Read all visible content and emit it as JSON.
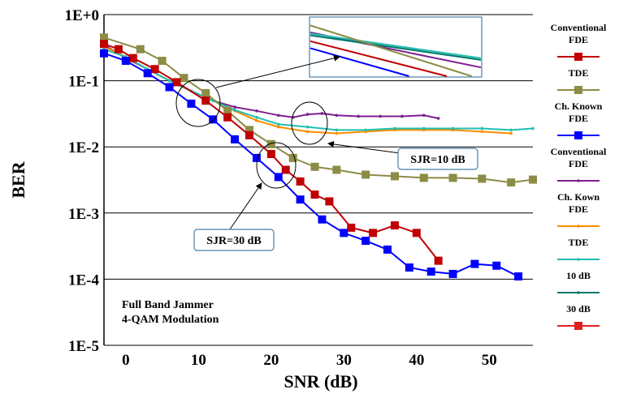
{
  "chart_data": {
    "type": "line",
    "xlabel": "SNR (dB)",
    "ylabel": "BER",
    "xlim": [
      -3,
      56
    ],
    "ylim_log10": [
      -5,
      0
    ],
    "log_y": true,
    "grid": "horizontal",
    "x_ticks": [
      0,
      10,
      20,
      30,
      40,
      50
    ],
    "y_ticks": [
      "1E+0",
      "1E-1",
      "1E-2",
      "1E-3",
      "1E-4",
      "1E-5"
    ],
    "legend_placement": "right, outside",
    "annotations": {
      "jammer_line1": "Full Band Jammer",
      "jammer_line2": "4-QAM Modulation",
      "sjr10": "SJR=10 dB",
      "sjr30": "SJR=30 dB"
    },
    "legend": [
      {
        "lines": [
          "Conventional",
          "FDE"
        ],
        "color": "#c00000",
        "marker": "square"
      },
      {
        "lines": [
          "TDE"
        ],
        "color": "#8c8c46",
        "marker": "square"
      },
      {
        "lines": [
          "Ch. Known",
          "FDE"
        ],
        "color": "#0000ff",
        "marker": "square"
      },
      {
        "lines": [
          "Conventional",
          "FDE"
        ],
        "color": "#7f1f8f",
        "marker": "dot"
      },
      {
        "lines": [
          "Ch. Kown",
          "FDE"
        ],
        "color": "#ff8c00",
        "marker": "dot"
      },
      {
        "lines": [
          "TDE"
        ],
        "color": "#1fbfaf",
        "marker": "dot"
      },
      {
        "lines": [
          "10 dB"
        ],
        "color": "#00766b",
        "marker": "dot"
      },
      {
        "lines": [
          "30 dB"
        ],
        "color": "#e0201f",
        "marker": "square"
      }
    ],
    "series": [
      {
        "color": "#7f1f8f",
        "marker": "dot",
        "x": [
          -3,
          0,
          3,
          6,
          9,
          12,
          15,
          18,
          21,
          23,
          25,
          27,
          29,
          32,
          35,
          38,
          41,
          43
        ],
        "y": [
          0.35,
          0.22,
          0.15,
          0.1,
          0.07,
          0.05,
          0.04,
          0.035,
          0.03,
          0.028,
          0.031,
          0.032,
          0.03,
          0.029,
          0.029,
          0.029,
          0.03,
          0.027
        ]
      },
      {
        "color": "#ff8c00",
        "marker": "dot",
        "x": [
          -3,
          0,
          3,
          6,
          9,
          12,
          15,
          18,
          21,
          25,
          29,
          33,
          37,
          41,
          45,
          49,
          53
        ],
        "y": [
          0.33,
          0.23,
          0.15,
          0.1,
          0.07,
          0.05,
          0.035,
          0.025,
          0.02,
          0.017,
          0.016,
          0.017,
          0.018,
          0.018,
          0.018,
          0.017,
          0.016
        ]
      },
      {
        "color": "#1fbfaf",
        "marker": "dot",
        "x": [
          -3,
          0,
          3,
          6,
          9,
          12,
          15,
          18,
          21,
          25,
          29,
          33,
          37,
          41,
          45,
          49,
          53,
          56
        ],
        "y": [
          0.3,
          0.23,
          0.15,
          0.1,
          0.07,
          0.05,
          0.036,
          0.028,
          0.022,
          0.02,
          0.018,
          0.018,
          0.019,
          0.019,
          0.019,
          0.019,
          0.018,
          0.019
        ]
      },
      {
        "color": "#8c8c46",
        "marker": "square",
        "x": [
          -3,
          2,
          5,
          8,
          11,
          14,
          17,
          20,
          23,
          26,
          29,
          33,
          37,
          41,
          45,
          49,
          53,
          56
        ],
        "y": [
          0.45,
          0.3,
          0.2,
          0.11,
          0.065,
          0.035,
          0.018,
          0.011,
          0.0068,
          0.005,
          0.0045,
          0.0038,
          0.0036,
          0.0034,
          0.0034,
          0.0033,
          0.0029,
          0.0032
        ]
      },
      {
        "color": "#c00000",
        "marker": "square",
        "x": [
          -3,
          -1,
          1,
          4,
          7,
          11,
          14,
          17,
          20,
          22,
          24,
          26,
          28,
          31,
          34,
          37,
          40,
          43
        ],
        "y": [
          0.36,
          0.3,
          0.22,
          0.15,
          0.095,
          0.05,
          0.028,
          0.015,
          0.0078,
          0.0045,
          0.003,
          0.0019,
          0.0015,
          0.0006,
          0.0005,
          0.00065,
          0.0005,
          0.00019
        ]
      },
      {
        "color": "#0000ff",
        "marker": "square",
        "x": [
          -3,
          0,
          3,
          6,
          9,
          12,
          15,
          18,
          21,
          24,
          27,
          30,
          33,
          36,
          39,
          42,
          45,
          48,
          51,
          54
        ],
        "y": [
          0.26,
          0.2,
          0.13,
          0.08,
          0.045,
          0.026,
          0.013,
          0.0068,
          0.0035,
          0.0016,
          0.0008,
          0.0005,
          0.00038,
          0.00028,
          0.00015,
          0.00013,
          0.00012,
          0.00017,
          0.00016,
          0.00011
        ]
      }
    ],
    "inset_series": [
      {
        "color": "#7f1f8f",
        "y_start": 0.25,
        "y_end": 0.85
      },
      {
        "color": "#1fbfaf",
        "y_start": 0.27,
        "y_end": 0.69
      },
      {
        "color": "#00766b",
        "y_start": 0.3,
        "y_end": 0.72
      },
      {
        "color": "#8c8c46",
        "y_start": 0.13,
        "y_end": 1.05
      },
      {
        "color": "#c00000",
        "y_start": 0.4,
        "y_end": 1.15
      },
      {
        "color": "#0000ff",
        "y_start": 0.52,
        "y_end": 1.35
      }
    ]
  }
}
